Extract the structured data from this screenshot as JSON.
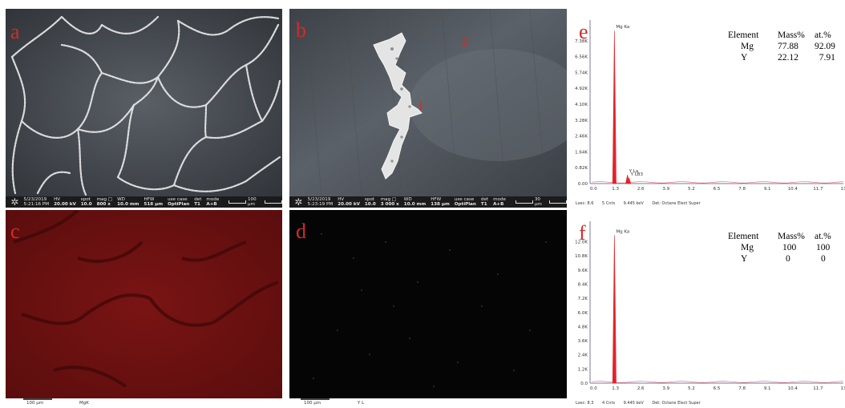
{
  "panels": {
    "a": {
      "label": "a"
    },
    "b": {
      "label": "b",
      "point_1": "1",
      "point_2": "2"
    },
    "c": {
      "label": "c",
      "scale": "100 µm",
      "element": "MgK"
    },
    "d": {
      "label": "d",
      "scale": "100 µm",
      "element": "Y L"
    },
    "e": {
      "label": "e"
    },
    "f": {
      "label": "f"
    }
  },
  "sem_a": {
    "date": "5/23/2019",
    "time": "5:21:16 PM",
    "hv_label": "HV",
    "hv": "20.00 kV",
    "spot_label": "spot",
    "spot": "10.0",
    "mag_label": "mag □",
    "mag": "800 x",
    "wd_label": "WD",
    "wd": "10.0 mm",
    "hfw_label": "HFW",
    "hfw": "518 µm",
    "usecase_label": "use case",
    "usecase": "OptiPlan",
    "det_label": "det",
    "det": "T1",
    "mode_label": "mode",
    "mode": "A+B",
    "scale": "100 µm"
  },
  "sem_b": {
    "date": "5/23/2019",
    "time": "5:23:19 PM",
    "hv_label": "HV",
    "hv": "20.00 kV",
    "spot_label": "spot",
    "spot": "10.0",
    "mag_label": "mag □",
    "mag": "3 000 x",
    "wd_label": "WD",
    "wd": "10.0 mm",
    "hfw_label": "HFW",
    "hfw": "138 µm",
    "usecase_label": "use case",
    "usecase": "OptiPlan",
    "det_label": "det",
    "det": "T1",
    "mode_label": "mode",
    "mode": "A+B",
    "scale": "30 µm"
  },
  "eds_e": {
    "table": {
      "h_element": "Element",
      "h_mass": "Mass%",
      "h_at": "at.%",
      "rows": [
        {
          "el": "Mg",
          "mass": "77.88",
          "at": "92.09"
        },
        {
          "el": "Y",
          "mass": "22.12",
          "at": "7.91"
        }
      ]
    },
    "footer": {
      "lsec": "Lsec: 8.6",
      "cnts": "5 Cnts",
      "kev": "9.445 keV",
      "det": "Det: Octane Elect Super"
    },
    "peak_labels": {
      "mg": "Mg Ka",
      "y1": "Y La",
      "y2": "Y LB3"
    }
  },
  "eds_f": {
    "table": {
      "h_element": "Element",
      "h_mass": "Mass%",
      "h_at": "at.%",
      "rows": [
        {
          "el": "Mg",
          "mass": "100",
          "at": "100"
        },
        {
          "el": "Y",
          "mass": "0",
          "at": "0"
        }
      ]
    },
    "footer": {
      "lsec": "Lsec: 8.3",
      "cnts": "4 Cnts",
      "kev": "9.445 keV",
      "det": "Det: Octane Elect Super"
    },
    "peak_labels": {
      "mg": "Mg Ka"
    }
  },
  "chart_data": [
    {
      "type": "line",
      "x_ticks": [
        "0.0",
        "1.3",
        "2.6",
        "3.9",
        "5.2",
        "6.5",
        "7.8",
        "9.1",
        "10.4",
        "11.7",
        "13"
      ],
      "y_ticks": [
        "0.00",
        "0.82K",
        "1.64K",
        "2.46K",
        "3.28K",
        "4.10K",
        "4.92K",
        "5.74K",
        "6.56K",
        "7.38K"
      ],
      "xlim": [
        0,
        13
      ],
      "ylim": [
        0,
        8.2
      ],
      "peaks": [
        {
          "label": "Mg Ka",
          "x": 1.25,
          "y": 7.9
        },
        {
          "label": "Y La",
          "x": 1.92,
          "y": 0.45
        },
        {
          "label": "Y LB3",
          "x": 2.0,
          "y": 0.28
        }
      ],
      "color": "#e3242b"
    },
    {
      "type": "line",
      "x_ticks": [
        "0.0",
        "1.3",
        "2.6",
        "3.9",
        "5.2",
        "6.5",
        "7.8",
        "9.1",
        "10.4",
        "11.7",
        "13"
      ],
      "y_ticks": [
        "0.0",
        "1.2K",
        "2.4K",
        "3.6K",
        "4.8K",
        "6.0K",
        "7.2K",
        "8.4K",
        "9.6K",
        "10.8K",
        "12.0K"
      ],
      "xlim": [
        0,
        13
      ],
      "ylim": [
        0,
        12.0
      ],
      "peaks": [
        {
          "label": "Mg Ka",
          "x": 1.25,
          "y": 11.3
        }
      ],
      "color": "#e3242b"
    }
  ]
}
